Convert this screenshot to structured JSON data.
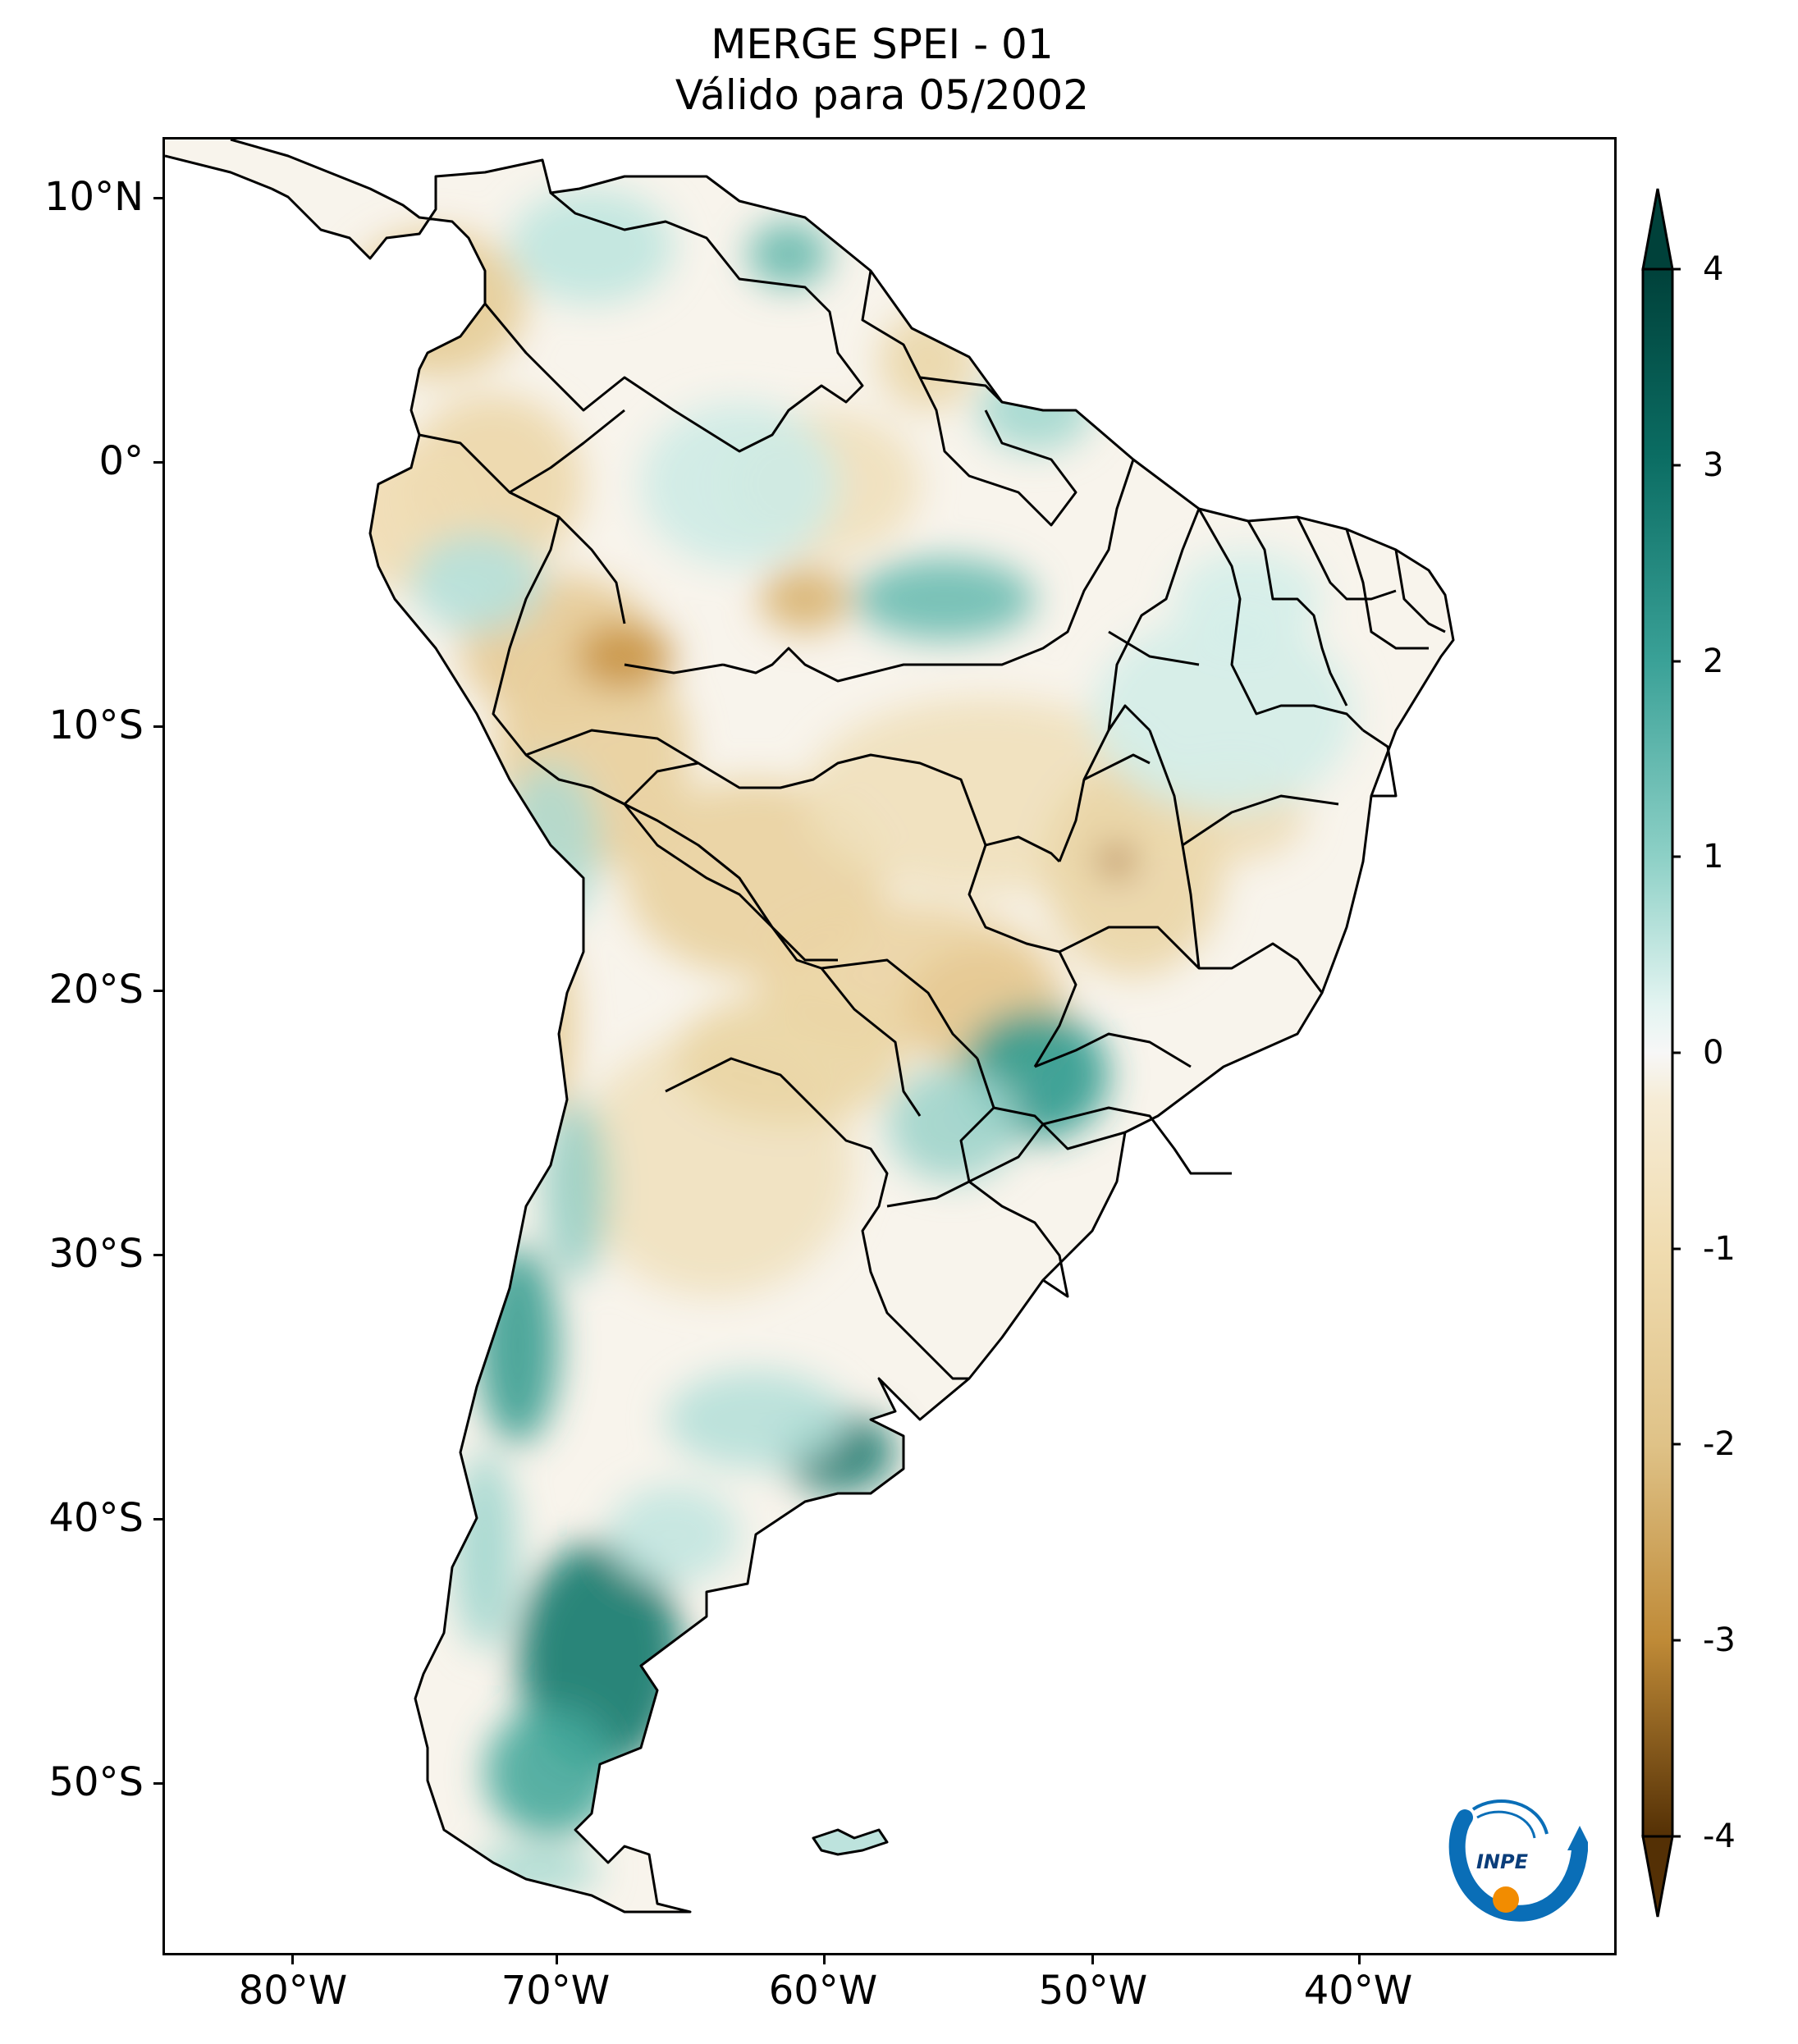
{
  "title": {
    "line1": "MERGE   SPEI - 01",
    "line2": "Válido para 05/2002"
  },
  "axes": {
    "lat_ticks": [
      "10°N",
      "0°",
      "10°S",
      "20°S",
      "30°S",
      "40°S",
      "50°S"
    ],
    "lon_ticks": [
      "80°W",
      "70°W",
      "60°W",
      "50°W",
      "40°W"
    ],
    "lat_values": [
      10,
      0,
      -10,
      -20,
      -30,
      -40,
      -50
    ],
    "lon_values": [
      -80,
      -70,
      -60,
      -50,
      -40
    ],
    "lon_range": [
      -85,
      -29
    ],
    "lat_range": [
      -56,
      12.5
    ]
  },
  "colorbar": {
    "labels": [
      "4",
      "3",
      "2",
      "1",
      "0",
      "-1",
      "-2",
      "-3",
      "-4"
    ],
    "values": [
      4,
      3,
      2,
      1,
      0,
      -1,
      -2,
      -3,
      -4
    ],
    "range": [
      -4,
      4
    ],
    "extend": "both",
    "colors_high_to_low": [
      "#00413a",
      "#0b6d63",
      "#3aa197",
      "#8dd0c6",
      "#d4eeea",
      "#f7f7f7",
      "#f4e6c5",
      "#dfc287",
      "#bf8a37",
      "#8f5411",
      "#543005"
    ]
  },
  "logo": {
    "text": "INPE",
    "accent_blue": "#0a6eb7",
    "accent_orange": "#f28c00"
  }
}
